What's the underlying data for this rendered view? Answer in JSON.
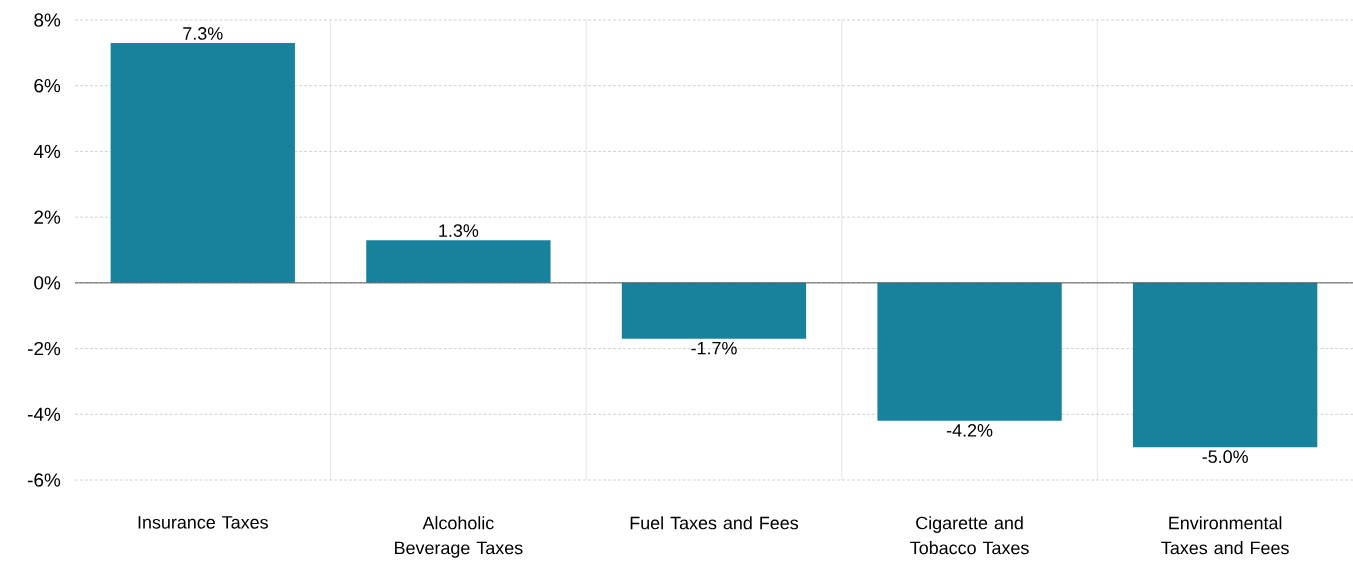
{
  "chart_data": {
    "type": "bar",
    "categories": [
      "Insurance Taxes",
      "Alcoholic Beverage Taxes",
      "Fuel Taxes and Fees",
      "Cigarette and Tobacco Taxes",
      "Environmental Taxes and Fees"
    ],
    "values": [
      7.3,
      1.3,
      -1.7,
      -4.2,
      -5.0
    ],
    "value_labels": [
      "7.3%",
      "1.3%",
      "-1.7%",
      "-4.2%",
      "-5.0%"
    ],
    "color": "#18829c",
    "ylim": [
      -6,
      8
    ],
    "yticks": [
      {
        "value": -6,
        "label": "-6%"
      },
      {
        "value": -4,
        "label": "-4%"
      },
      {
        "value": -2,
        "label": "-2%"
      },
      {
        "value": 0,
        "label": "0%"
      },
      {
        "value": 2,
        "label": "2%"
      },
      {
        "value": 4,
        "label": "4%"
      },
      {
        "value": 6,
        "label": "6%"
      },
      {
        "value": 8,
        "label": "8%"
      }
    ],
    "grid": true
  }
}
